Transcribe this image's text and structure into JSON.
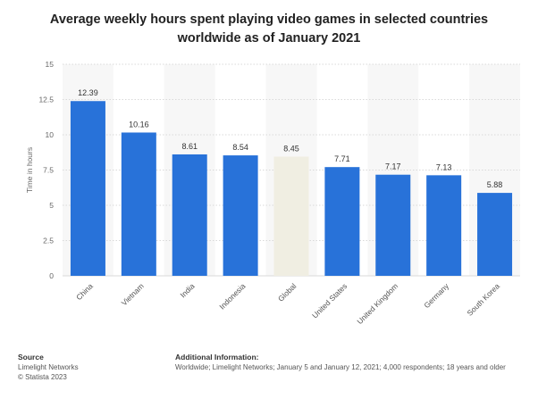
{
  "title": "Average weekly hours spent playing video games in selected countries worldwide as of January 2021",
  "footer": {
    "source_heading": "Source",
    "source_lines": [
      "Limelight Networks",
      "© Statista 2023"
    ],
    "info_heading": "Additional Information:",
    "info_text": "Worldwide; Limelight Networks; January 5 and January 12, 2021; 4,000 respondents; 18 years and older"
  },
  "chart_data": {
    "type": "bar",
    "categories": [
      "China",
      "Vietnam",
      "India",
      "Indonesia",
      "Global",
      "United States",
      "United Kingdom",
      "Germany",
      "South Korea"
    ],
    "values": [
      12.39,
      10.16,
      8.61,
      8.54,
      8.45,
      7.71,
      7.17,
      7.13,
      5.88
    ],
    "data_labels": [
      "12.39",
      "10.16",
      "8.61",
      "8.54",
      "8.45",
      "7.71",
      "7.17",
      "7.13",
      "5.88"
    ],
    "ylabel": "Time in hours",
    "ylim": [
      0,
      15
    ],
    "yticks": [
      "0",
      "2.5",
      "5",
      "7.5",
      "10",
      "12.5",
      "15"
    ],
    "bar_color": "#2872d9",
    "highlight_color": "#f0eee2",
    "highlight_category": "Global",
    "grid": true
  }
}
